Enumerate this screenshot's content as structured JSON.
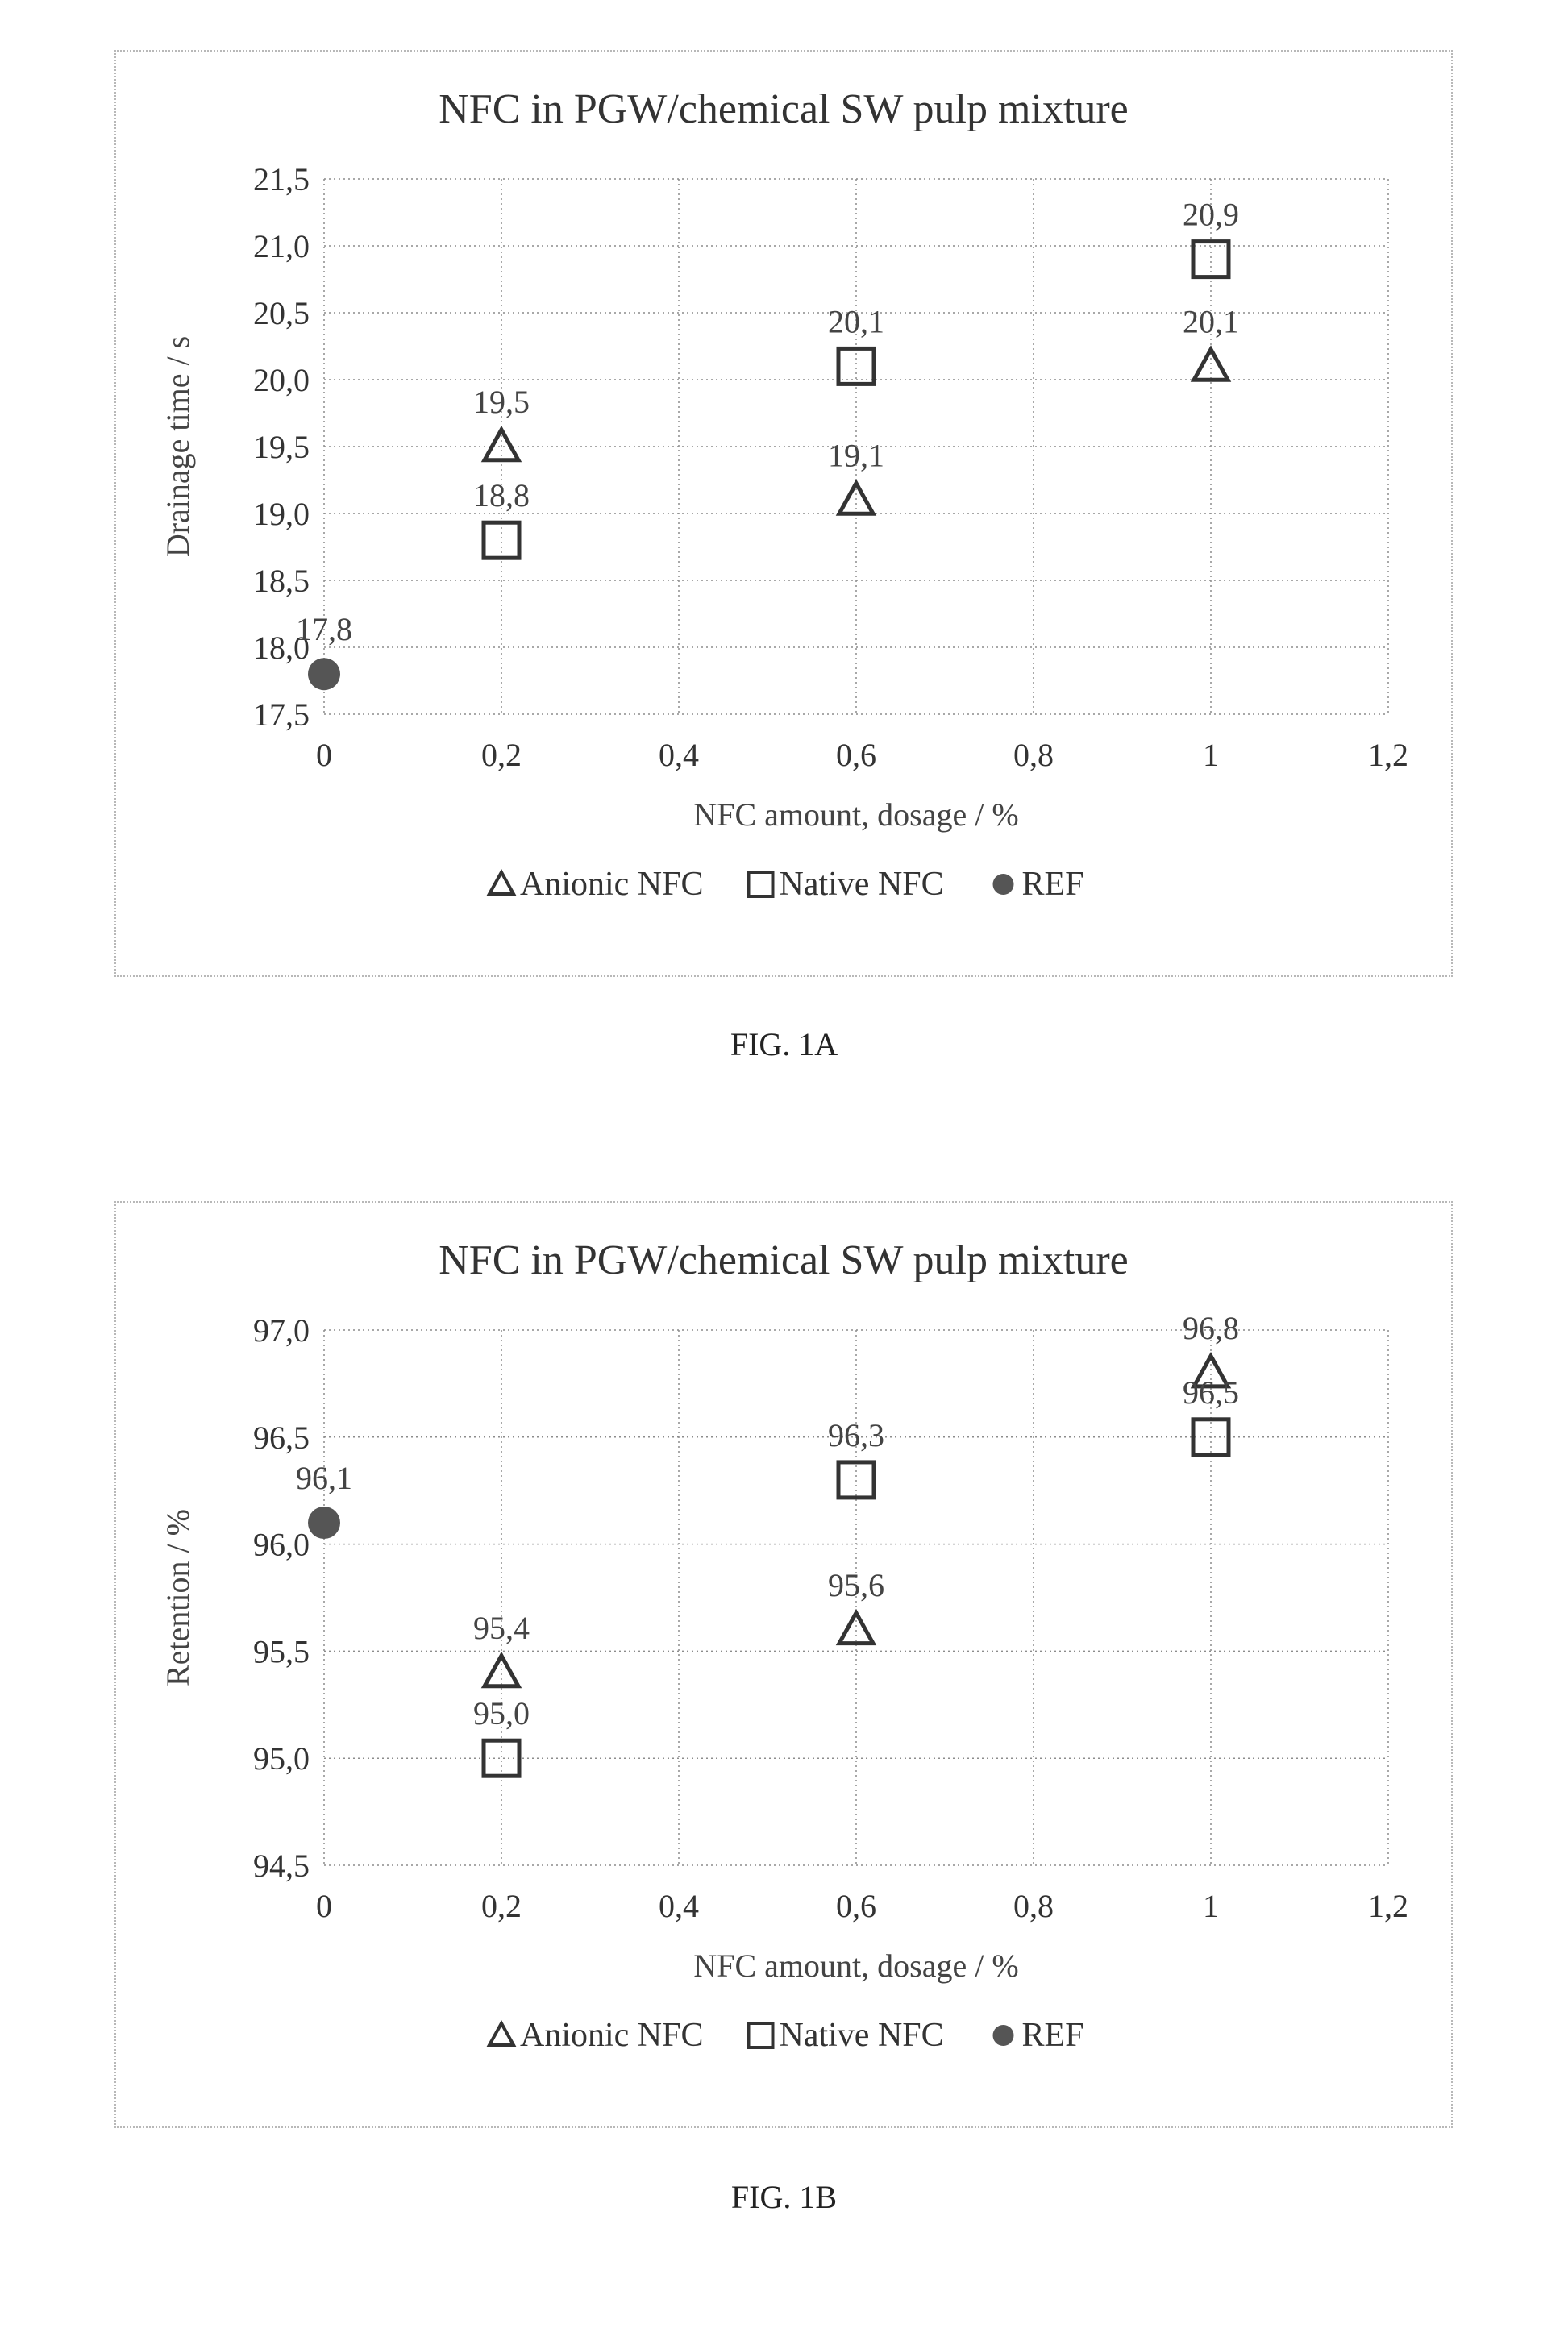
{
  "figures": [
    {
      "caption": "FIG. 1A",
      "chart": {
        "type": "scatter",
        "title": "NFC in PGW/chemical  SW pulp mixture",
        "xlabel": "NFC amount, dosage / %",
        "ylabel": "Drainage time / s",
        "xlim": [
          0,
          1.2
        ],
        "ylim": [
          17.5,
          21.5
        ],
        "grid": true,
        "legend_position": "bottom",
        "x_ticks": [
          "0",
          "0,2",
          "0,4",
          "0,6",
          "0,8",
          "1",
          "1,2"
        ],
        "y_ticks": [
          "17,5",
          "18,0",
          "18,5",
          "19,0",
          "19,5",
          "20,0",
          "20,5",
          "21,0",
          "21,5"
        ],
        "series": [
          {
            "name": "Anionic NFC",
            "marker": "triangle",
            "color": "#333333",
            "points": [
              {
                "x": 0.2,
                "y": 19.5,
                "label": "19,5"
              },
              {
                "x": 0.6,
                "y": 19.1,
                "label": "19,1"
              },
              {
                "x": 1.0,
                "y": 20.1,
                "label": "20,1"
              }
            ]
          },
          {
            "name": "Native NFC",
            "marker": "square",
            "color": "#333333",
            "points": [
              {
                "x": 0.2,
                "y": 18.8,
                "label": "18,8"
              },
              {
                "x": 0.6,
                "y": 20.1,
                "label": "20,1"
              },
              {
                "x": 1.0,
                "y": 20.9,
                "label": "20,9"
              }
            ]
          },
          {
            "name": "REF",
            "marker": "circle",
            "color": "#555555",
            "points": [
              {
                "x": 0,
                "y": 17.8,
                "label": "17,8"
              }
            ]
          }
        ]
      }
    },
    {
      "caption": "FIG. 1B",
      "chart": {
        "type": "scatter",
        "title": "NFC in PGW/chemical SW pulp mixture",
        "xlabel": "NFC amount, dosage / %",
        "ylabel": "Retention / %",
        "xlim": [
          0,
          1.2
        ],
        "ylim": [
          94.5,
          97.0
        ],
        "grid": true,
        "legend_position": "bottom",
        "x_ticks": [
          "0",
          "0,2",
          "0,4",
          "0,6",
          "0,8",
          "1",
          "1,2"
        ],
        "y_ticks": [
          "94,5",
          "95,0",
          "95,5",
          "96,0",
          "96,5",
          "97,0"
        ],
        "series": [
          {
            "name": "Anionic NFC",
            "marker": "triangle",
            "color": "#333333",
            "points": [
              {
                "x": 0.2,
                "y": 95.4,
                "label": "95,4"
              },
              {
                "x": 0.6,
                "y": 95.6,
                "label": "95,6"
              },
              {
                "x": 1.0,
                "y": 96.8,
                "label": "96,8"
              }
            ]
          },
          {
            "name": "Native NFC",
            "marker": "square",
            "color": "#333333",
            "points": [
              {
                "x": 0.2,
                "y": 95.0,
                "label": "95,0"
              },
              {
                "x": 0.6,
                "y": 96.3,
                "label": "96,3"
              },
              {
                "x": 1.0,
                "y": 96.5,
                "label": "96,5"
              }
            ]
          },
          {
            "name": "REF",
            "marker": "circle",
            "color": "#555555",
            "points": [
              {
                "x": 0,
                "y": 96.1,
                "label": "96,1"
              }
            ]
          }
        ]
      }
    }
  ]
}
